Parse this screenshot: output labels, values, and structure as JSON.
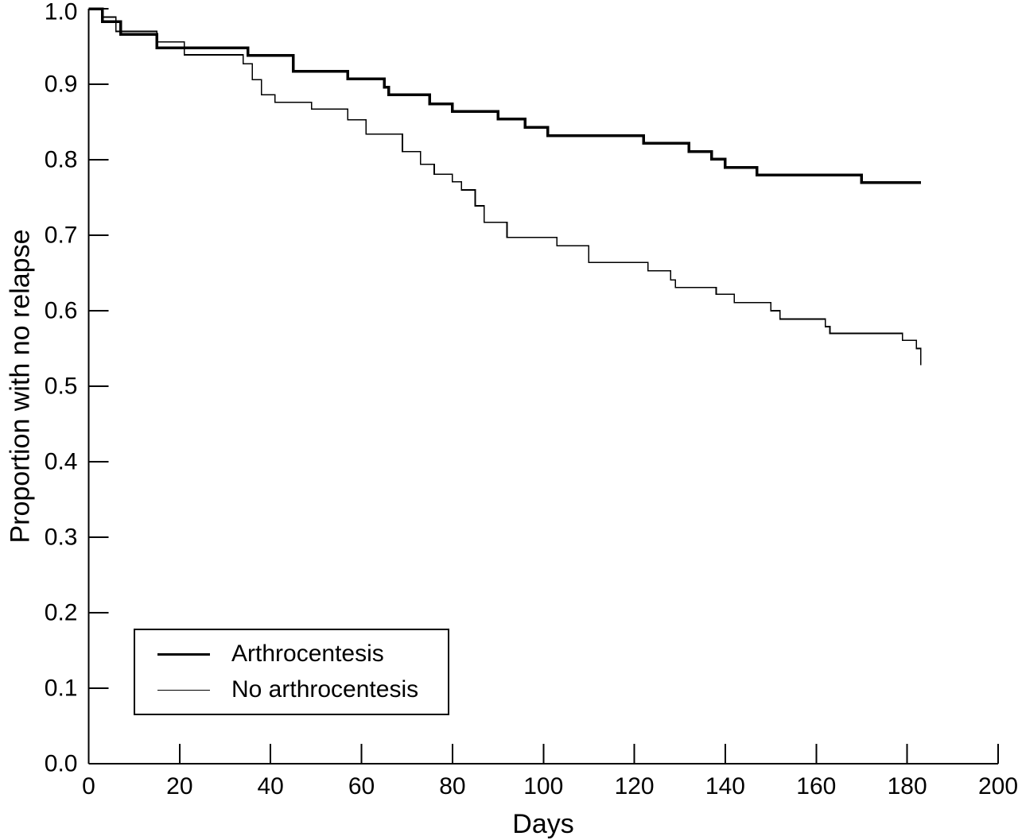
{
  "figure": {
    "background": "#ffffff",
    "line_color": "#000000"
  },
  "chart_data": {
    "type": "line",
    "chart_style": "kaplan-meier-step",
    "title": "",
    "xlabel": "Days",
    "ylabel": "Proportion with no relapse",
    "xlim": [
      0,
      200
    ],
    "ylim": [
      0.0,
      1.0
    ],
    "x_ticks": [
      0,
      20,
      40,
      60,
      80,
      100,
      120,
      140,
      160,
      180,
      200
    ],
    "y_ticks": [
      0.0,
      0.1,
      0.2,
      0.3,
      0.4,
      0.5,
      0.6,
      0.7,
      0.8,
      0.9,
      1.0
    ],
    "grid": false,
    "legend": {
      "position": "lower-left",
      "entries": [
        {
          "label": "Arthrocentesis",
          "line_weight": "thick"
        },
        {
          "label": "No arthrocentesis",
          "line_weight": "thin"
        }
      ]
    },
    "series": [
      {
        "name": "Arthrocentesis",
        "stroke_width": 3.5,
        "points": [
          [
            0,
            1.0
          ],
          [
            3,
            0.983
          ],
          [
            7,
            0.966
          ],
          [
            15,
            0.948
          ],
          [
            35,
            0.938
          ],
          [
            45,
            0.917
          ],
          [
            57,
            0.907
          ],
          [
            65,
            0.896
          ],
          [
            66,
            0.886
          ],
          [
            75,
            0.874
          ],
          [
            80,
            0.864
          ],
          [
            90,
            0.854
          ],
          [
            96,
            0.843
          ],
          [
            101,
            0.832
          ],
          [
            122,
            0.822
          ],
          [
            132,
            0.811
          ],
          [
            137,
            0.801
          ],
          [
            140,
            0.79
          ],
          [
            147,
            0.78
          ],
          [
            170,
            0.77
          ],
          [
            183,
            0.77
          ]
        ]
      },
      {
        "name": "No arthrocentesis",
        "stroke_width": 1.6,
        "points": [
          [
            0,
            1.0
          ],
          [
            3,
            0.989
          ],
          [
            6,
            0.97
          ],
          [
            15,
            0.956
          ],
          [
            21,
            0.939
          ],
          [
            34,
            0.927
          ],
          [
            36,
            0.906
          ],
          [
            38,
            0.886
          ],
          [
            41,
            0.876
          ],
          [
            49,
            0.867
          ],
          [
            57,
            0.853
          ],
          [
            61,
            0.834
          ],
          [
            69,
            0.811
          ],
          [
            73,
            0.794
          ],
          [
            76,
            0.781
          ],
          [
            80,
            0.771
          ],
          [
            82,
            0.76
          ],
          [
            85,
            0.739
          ],
          [
            87,
            0.717
          ],
          [
            92,
            0.697
          ],
          [
            103,
            0.686
          ],
          [
            110,
            0.664
          ],
          [
            123,
            0.653
          ],
          [
            128,
            0.641
          ],
          [
            129,
            0.631
          ],
          [
            138,
            0.622
          ],
          [
            142,
            0.611
          ],
          [
            150,
            0.6
          ],
          [
            152,
            0.589
          ],
          [
            162,
            0.579
          ],
          [
            163,
            0.57
          ],
          [
            179,
            0.561
          ],
          [
            182,
            0.55
          ],
          [
            183,
            0.528
          ]
        ]
      }
    ]
  }
}
